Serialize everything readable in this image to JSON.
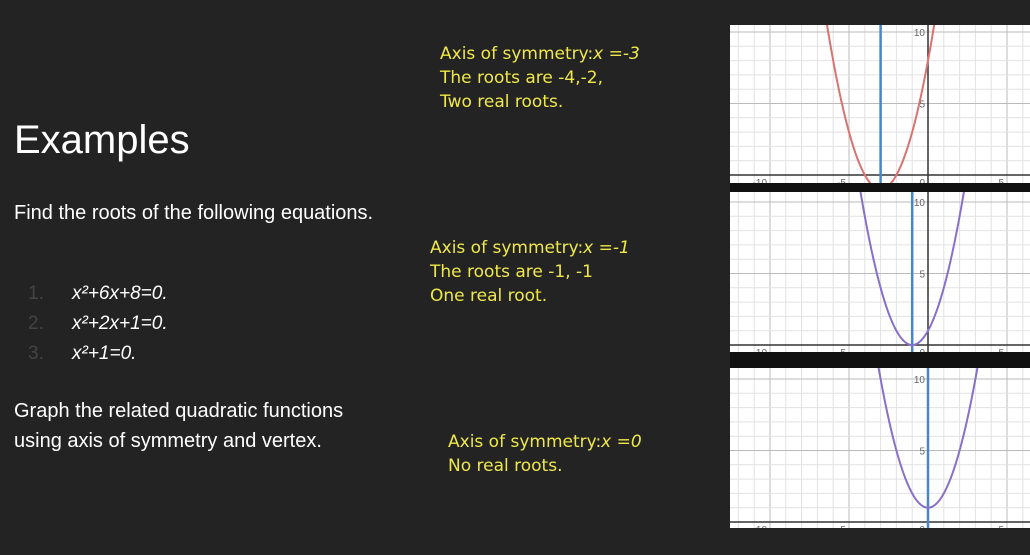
{
  "title": "Examples",
  "instructions": "Find the roots of the following equations.",
  "equations": [
    {
      "number": "1.",
      "text": "x²+6x+8=0."
    },
    {
      "number": "2.",
      "text": "x²+2x+1=0."
    },
    {
      "number": "3.",
      "text": "x²+1=0."
    }
  ],
  "task": "Graph the related quadratic functions using axis of symmetry and vertex.",
  "notes": [
    {
      "label": "Axis of symmetry:",
      "value": "x =-3",
      "lines": [
        "The roots are -4,-2,",
        "Two real roots."
      ]
    },
    {
      "label": "Axis of symmetry:",
      "value": "x =-1",
      "lines": [
        "The roots are -1, -1",
        "One real root."
      ]
    },
    {
      "label": "Axis of symmetry:",
      "value": "x =0",
      "lines": [
        "No real roots."
      ]
    }
  ],
  "graphs": [
    {
      "y_labels": [
        "10",
        "5"
      ],
      "x_labels": [
        "-10",
        "-5",
        "0",
        "5"
      ]
    },
    {
      "y_labels": [
        "10",
        "5"
      ],
      "x_labels": [
        "-10",
        "-5",
        "0",
        "5"
      ]
    },
    {
      "y_labels": [
        "10",
        "5"
      ],
      "x_labels": [
        "-10",
        "-5",
        "0",
        "5"
      ]
    }
  ]
}
